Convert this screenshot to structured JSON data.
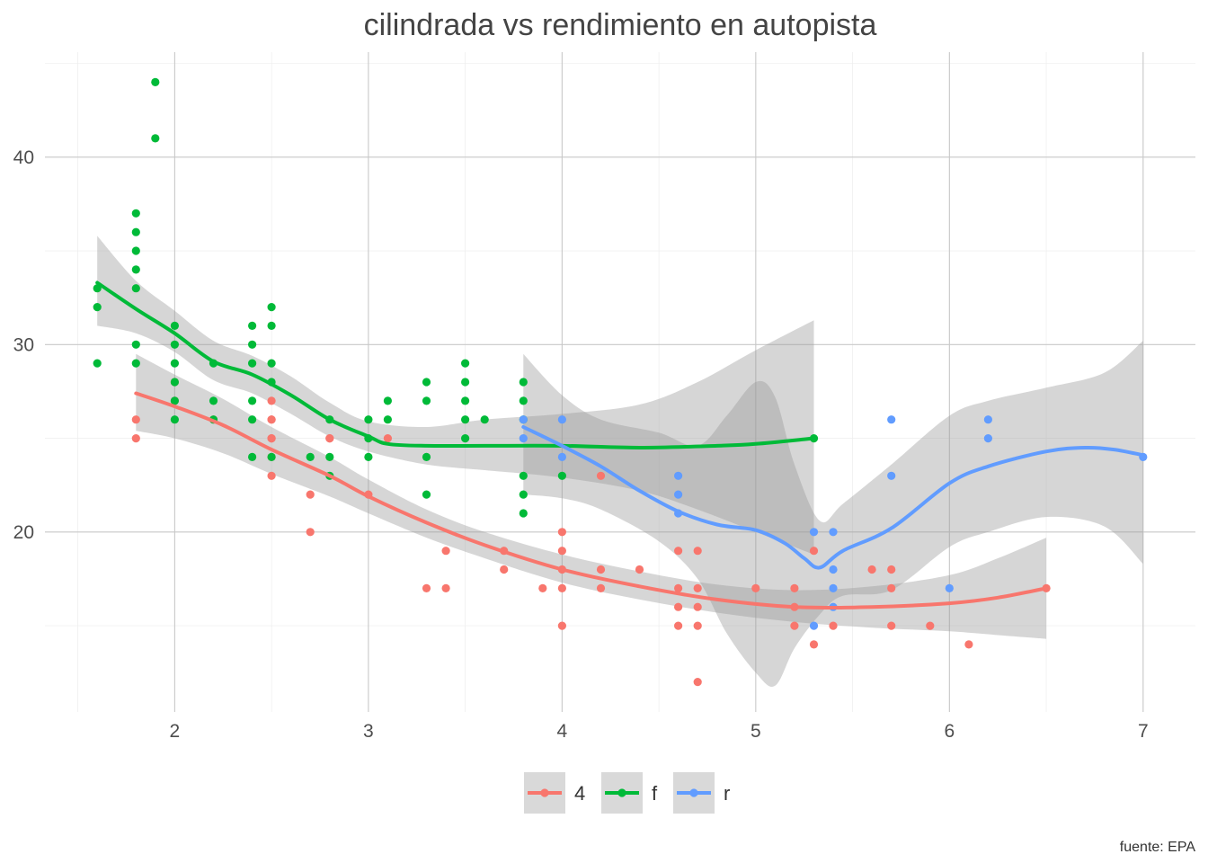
{
  "chart_data": {
    "type": "scatter",
    "title": "cilindrada vs rendimiento en autopista",
    "xlabel": "",
    "ylabel": "",
    "caption": "fuente: EPA",
    "xlim": [
      1.33,
      7.27
    ],
    "ylim": [
      10.4,
      45.6
    ],
    "x_ticks": [
      2,
      3,
      4,
      5,
      6,
      7
    ],
    "y_ticks": [
      20,
      30,
      40
    ],
    "grid": true,
    "legend_position": "bottom",
    "series": [
      {
        "name": "4",
        "color": "#F8766D",
        "points": [
          [
            1.8,
            26
          ],
          [
            1.8,
            25
          ],
          [
            2.0,
            28
          ],
          [
            2.0,
            27
          ],
          [
            2.5,
            25
          ],
          [
            2.5,
            25
          ],
          [
            2.5,
            23
          ],
          [
            2.5,
            24
          ],
          [
            2.5,
            26
          ],
          [
            2.2,
            26
          ],
          [
            2.5,
            26
          ],
          [
            2.5,
            27
          ],
          [
            2.8,
            25
          ],
          [
            2.8,
            25
          ],
          [
            3.0,
            22
          ],
          [
            3.1,
            25
          ],
          [
            3.3,
            17
          ],
          [
            3.4,
            19
          ],
          [
            3.4,
            17
          ],
          [
            3.7,
            19
          ],
          [
            3.7,
            18
          ],
          [
            3.9,
            17
          ],
          [
            4.0,
            20
          ],
          [
            4.0,
            19
          ],
          [
            4.0,
            18
          ],
          [
            4.0,
            17
          ],
          [
            4.0,
            15
          ],
          [
            4.2,
            23
          ],
          [
            4.2,
            18
          ],
          [
            4.2,
            17
          ],
          [
            4.4,
            18
          ],
          [
            4.6,
            19
          ],
          [
            4.6,
            17
          ],
          [
            4.6,
            16
          ],
          [
            4.6,
            15
          ],
          [
            4.7,
            19
          ],
          [
            4.7,
            17
          ],
          [
            4.7,
            16
          ],
          [
            4.7,
            15
          ],
          [
            4.7,
            12
          ],
          [
            5.0,
            17
          ],
          [
            5.2,
            17
          ],
          [
            5.2,
            16
          ],
          [
            5.2,
            15
          ],
          [
            5.3,
            19
          ],
          [
            5.3,
            14
          ],
          [
            5.4,
            15
          ],
          [
            5.6,
            18
          ],
          [
            5.7,
            18
          ],
          [
            5.7,
            17
          ],
          [
            5.7,
            15
          ],
          [
            5.9,
            15
          ],
          [
            6.1,
            14
          ],
          [
            6.5,
            17
          ],
          [
            2.7,
            22
          ],
          [
            2.7,
            20
          ]
        ],
        "smooth": [
          [
            1.8,
            27.4
          ],
          [
            2.0,
            26.7
          ],
          [
            2.25,
            25.7
          ],
          [
            2.5,
            24.4
          ],
          [
            2.8,
            23.0
          ],
          [
            3.0,
            21.9
          ],
          [
            3.3,
            20.5
          ],
          [
            3.6,
            19.3
          ],
          [
            4.0,
            18.0
          ],
          [
            4.4,
            17.1
          ],
          [
            4.8,
            16.4
          ],
          [
            5.2,
            16.0
          ],
          [
            5.6,
            16.0
          ],
          [
            6.0,
            16.2
          ],
          [
            6.25,
            16.5
          ],
          [
            6.5,
            17.0
          ]
        ],
        "band_upper": [
          [
            1.8,
            29.5
          ],
          [
            2.0,
            28.4
          ],
          [
            2.25,
            27.1
          ],
          [
            2.5,
            25.6
          ],
          [
            2.8,
            24.0
          ],
          [
            3.0,
            22.8
          ],
          [
            3.3,
            21.2
          ],
          [
            3.6,
            20.0
          ],
          [
            4.0,
            18.8
          ],
          [
            4.4,
            17.9
          ],
          [
            4.8,
            17.2
          ],
          [
            5.2,
            16.9
          ],
          [
            5.6,
            17.1
          ],
          [
            6.0,
            17.7
          ],
          [
            6.25,
            18.6
          ],
          [
            6.5,
            19.7
          ]
        ],
        "band_lower": [
          [
            1.8,
            25.4
          ],
          [
            2.0,
            25.0
          ],
          [
            2.25,
            24.2
          ],
          [
            2.5,
            23.1
          ],
          [
            2.8,
            21.9
          ],
          [
            3.0,
            21.0
          ],
          [
            3.3,
            19.7
          ],
          [
            3.6,
            18.6
          ],
          [
            4.0,
            17.3
          ],
          [
            4.4,
            16.4
          ],
          [
            4.8,
            15.7
          ],
          [
            5.2,
            15.2
          ],
          [
            5.6,
            14.9
          ],
          [
            6.0,
            14.7
          ],
          [
            6.25,
            14.5
          ],
          [
            6.5,
            14.3
          ]
        ]
      },
      {
        "name": "f",
        "color": "#00BA38",
        "points": [
          [
            1.6,
            33
          ],
          [
            1.6,
            32
          ],
          [
            1.6,
            29
          ],
          [
            1.8,
            37
          ],
          [
            1.8,
            36
          ],
          [
            1.8,
            35
          ],
          [
            1.8,
            34
          ],
          [
            1.8,
            33
          ],
          [
            1.8,
            30
          ],
          [
            1.8,
            29
          ],
          [
            1.9,
            44
          ],
          [
            1.9,
            41
          ],
          [
            2.0,
            31
          ],
          [
            2.0,
            30
          ],
          [
            2.0,
            29
          ],
          [
            2.0,
            28
          ],
          [
            2.0,
            27
          ],
          [
            2.0,
            26
          ],
          [
            2.2,
            29
          ],
          [
            2.2,
            27
          ],
          [
            2.2,
            26
          ],
          [
            2.4,
            31
          ],
          [
            2.4,
            30
          ],
          [
            2.4,
            29
          ],
          [
            2.4,
            27
          ],
          [
            2.4,
            26
          ],
          [
            2.4,
            24
          ],
          [
            2.5,
            32
          ],
          [
            2.5,
            31
          ],
          [
            2.5,
            29
          ],
          [
            2.5,
            28
          ],
          [
            2.5,
            24
          ],
          [
            2.7,
            24
          ],
          [
            2.8,
            26
          ],
          [
            2.8,
            24
          ],
          [
            2.8,
            23
          ],
          [
            3.0,
            26
          ],
          [
            3.0,
            25
          ],
          [
            3.0,
            24
          ],
          [
            3.1,
            27
          ],
          [
            3.1,
            26
          ],
          [
            3.3,
            28
          ],
          [
            3.3,
            27
          ],
          [
            3.3,
            24
          ],
          [
            3.3,
            22
          ],
          [
            3.5,
            29
          ],
          [
            3.5,
            28
          ],
          [
            3.5,
            27
          ],
          [
            3.5,
            26
          ],
          [
            3.5,
            25
          ],
          [
            3.6,
            26
          ],
          [
            3.8,
            28
          ],
          [
            3.8,
            27
          ],
          [
            3.8,
            26
          ],
          [
            3.8,
            23
          ],
          [
            3.8,
            22
          ],
          [
            3.8,
            21
          ],
          [
            4.0,
            23
          ],
          [
            5.3,
            25
          ]
        ],
        "smooth": [
          [
            1.6,
            33.3
          ],
          [
            1.8,
            31.9
          ],
          [
            2.0,
            30.6
          ],
          [
            2.2,
            29.1
          ],
          [
            2.4,
            28.4
          ],
          [
            2.6,
            27.3
          ],
          [
            2.8,
            26.0
          ],
          [
            3.0,
            25.1
          ],
          [
            3.1,
            24.7
          ],
          [
            3.3,
            24.6
          ],
          [
            3.6,
            24.6
          ],
          [
            4.0,
            24.6
          ],
          [
            4.4,
            24.5
          ],
          [
            4.8,
            24.6
          ],
          [
            5.0,
            24.7
          ],
          [
            5.3,
            25.0
          ]
        ],
        "band_upper": [
          [
            1.6,
            35.8
          ],
          [
            1.8,
            33.4
          ],
          [
            2.0,
            31.8
          ],
          [
            2.2,
            30.2
          ],
          [
            2.4,
            29.4
          ],
          [
            2.6,
            28.3
          ],
          [
            2.8,
            26.9
          ],
          [
            3.0,
            25.9
          ],
          [
            3.3,
            25.6
          ],
          [
            3.6,
            26.0
          ],
          [
            4.0,
            26.3
          ],
          [
            4.4,
            26.8
          ],
          [
            4.7,
            28.0
          ],
          [
            5.0,
            29.7
          ],
          [
            5.3,
            31.3
          ]
        ],
        "band_lower": [
          [
            1.6,
            31.0
          ],
          [
            1.8,
            30.6
          ],
          [
            2.0,
            29.6
          ],
          [
            2.2,
            28.1
          ],
          [
            2.4,
            27.4
          ],
          [
            2.6,
            26.3
          ],
          [
            2.8,
            25.1
          ],
          [
            3.0,
            24.3
          ],
          [
            3.3,
            23.6
          ],
          [
            3.6,
            23.3
          ],
          [
            4.0,
            22.9
          ],
          [
            4.4,
            22.2
          ],
          [
            4.7,
            21.2
          ],
          [
            5.0,
            20.0
          ],
          [
            5.3,
            18.8
          ]
        ]
      },
      {
        "name": "r",
        "color": "#619CFF",
        "points": [
          [
            3.8,
            26
          ],
          [
            3.8,
            25
          ],
          [
            4.0,
            26
          ],
          [
            4.0,
            24
          ],
          [
            4.6,
            23
          ],
          [
            4.6,
            22
          ],
          [
            4.6,
            21
          ],
          [
            5.3,
            20
          ],
          [
            5.3,
            15
          ],
          [
            5.4,
            20
          ],
          [
            5.4,
            18
          ],
          [
            5.4,
            17
          ],
          [
            5.4,
            16
          ],
          [
            5.7,
            26
          ],
          [
            5.7,
            23
          ],
          [
            6.0,
            17
          ],
          [
            6.2,
            26
          ],
          [
            6.2,
            25
          ],
          [
            7.0,
            24
          ]
        ],
        "smooth": [
          [
            3.8,
            25.6
          ],
          [
            4.0,
            24.6
          ],
          [
            4.2,
            23.5
          ],
          [
            4.4,
            22.2
          ],
          [
            4.6,
            21.1
          ],
          [
            4.8,
            20.4
          ],
          [
            5.0,
            20.1
          ],
          [
            5.15,
            19.4
          ],
          [
            5.25,
            18.6
          ],
          [
            5.33,
            18.1
          ],
          [
            5.45,
            19.0
          ],
          [
            5.7,
            20.2
          ],
          [
            6.0,
            22.6
          ],
          [
            6.2,
            23.5
          ],
          [
            6.5,
            24.3
          ],
          [
            6.7,
            24.5
          ],
          [
            6.85,
            24.4
          ],
          [
            7.0,
            24.1
          ]
        ],
        "band_upper": [
          [
            3.8,
            29.5
          ],
          [
            4.0,
            27.3
          ],
          [
            4.2,
            26.0
          ],
          [
            4.5,
            25.3
          ],
          [
            4.7,
            24.6
          ],
          [
            4.85,
            26.2
          ],
          [
            5.0,
            28.0
          ],
          [
            5.1,
            27.2
          ],
          [
            5.2,
            23.6
          ],
          [
            5.33,
            20.6
          ],
          [
            5.45,
            21.5
          ],
          [
            5.7,
            23.6
          ],
          [
            6.0,
            26.2
          ],
          [
            6.2,
            27.0
          ],
          [
            6.5,
            27.7
          ],
          [
            6.8,
            28.5
          ],
          [
            7.0,
            30.2
          ]
        ],
        "band_lower": [
          [
            3.8,
            22.0
          ],
          [
            4.0,
            21.8
          ],
          [
            4.2,
            21.2
          ],
          [
            4.5,
            19.5
          ],
          [
            4.7,
            17.5
          ],
          [
            4.85,
            14.6
          ],
          [
            5.0,
            12.5
          ],
          [
            5.1,
            11.8
          ],
          [
            5.2,
            13.8
          ],
          [
            5.33,
            15.6
          ],
          [
            5.45,
            16.6
          ],
          [
            5.7,
            16.9
          ],
          [
            6.0,
            19.2
          ],
          [
            6.2,
            20.0
          ],
          [
            6.5,
            20.8
          ],
          [
            6.8,
            20.3
          ],
          [
            7.0,
            18.3
          ]
        ]
      }
    ]
  }
}
